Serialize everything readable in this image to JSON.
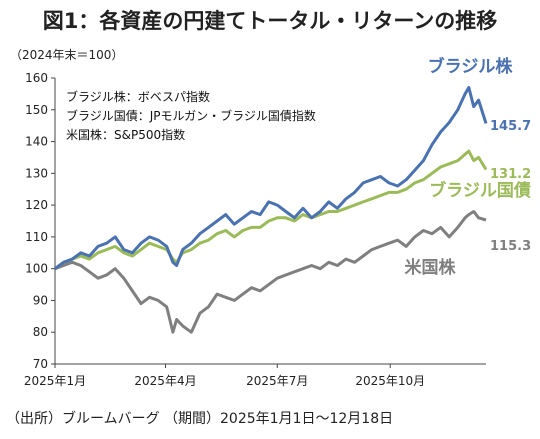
{
  "title": "図1：各資産の円建てトータル・リターンの推移",
  "unit_label": "（2024年末＝100）",
  "source": "（出所）ブルームバーグ （期間）2025年1月1日～12月18日",
  "notes": [
    "ブラジル株：ボベスパ指数",
    "ブラジル国債：JPモルガン・ブラジル国債指数",
    "米国株：S&P500指数"
  ],
  "chart_data": {
    "type": "line",
    "title": "図1：各資産の円建てトータル・リターンの推移",
    "ylabel": "（2024年末＝100）",
    "xlabel": "",
    "ylim": [
      70,
      160
    ],
    "yticks": [
      70,
      80,
      90,
      100,
      110,
      120,
      130,
      140,
      150,
      160
    ],
    "xlim": [
      "2025-01-01",
      "2025-12-18"
    ],
    "xticks": [
      {
        "date": "2025-01-01",
        "label": "2025年1月"
      },
      {
        "date": "2025-04-01",
        "label": "2025年4月"
      },
      {
        "date": "2025-07-01",
        "label": "2025年7月"
      },
      {
        "date": "2025-10-01",
        "label": "2025年10月"
      }
    ],
    "grid": false,
    "series": [
      {
        "name": "ブラジル株",
        "color": "#4a72b0",
        "end_label": "145.7",
        "points": [
          [
            "2025-01-01",
            100
          ],
          [
            "2025-01-08",
            102
          ],
          [
            "2025-01-15",
            103
          ],
          [
            "2025-01-22",
            105
          ],
          [
            "2025-01-29",
            104
          ],
          [
            "2025-02-05",
            107
          ],
          [
            "2025-02-12",
            108
          ],
          [
            "2025-02-19",
            110
          ],
          [
            "2025-02-26",
            106
          ],
          [
            "2025-03-05",
            105
          ],
          [
            "2025-03-12",
            108
          ],
          [
            "2025-03-19",
            110
          ],
          [
            "2025-03-26",
            109
          ],
          [
            "2025-04-02",
            107
          ],
          [
            "2025-04-07",
            102
          ],
          [
            "2025-04-10",
            101
          ],
          [
            "2025-04-15",
            106
          ],
          [
            "2025-04-22",
            108
          ],
          [
            "2025-04-29",
            111
          ],
          [
            "2025-05-06",
            113
          ],
          [
            "2025-05-13",
            115
          ],
          [
            "2025-05-20",
            117
          ],
          [
            "2025-05-27",
            114
          ],
          [
            "2025-06-03",
            116
          ],
          [
            "2025-06-10",
            118
          ],
          [
            "2025-06-17",
            117
          ],
          [
            "2025-06-24",
            121
          ],
          [
            "2025-07-01",
            120
          ],
          [
            "2025-07-08",
            118
          ],
          [
            "2025-07-15",
            116
          ],
          [
            "2025-07-22",
            119
          ],
          [
            "2025-07-29",
            116
          ],
          [
            "2025-08-05",
            118
          ],
          [
            "2025-08-12",
            121
          ],
          [
            "2025-08-19",
            119
          ],
          [
            "2025-08-26",
            122
          ],
          [
            "2025-09-02",
            124
          ],
          [
            "2025-09-09",
            127
          ],
          [
            "2025-09-16",
            128
          ],
          [
            "2025-09-23",
            129
          ],
          [
            "2025-09-30",
            127
          ],
          [
            "2025-10-07",
            126
          ],
          [
            "2025-10-14",
            128
          ],
          [
            "2025-10-21",
            131
          ],
          [
            "2025-10-28",
            134
          ],
          [
            "2025-11-04",
            139
          ],
          [
            "2025-11-11",
            143
          ],
          [
            "2025-11-18",
            146
          ],
          [
            "2025-11-25",
            150
          ],
          [
            "2025-12-01",
            155
          ],
          [
            "2025-12-04",
            157
          ],
          [
            "2025-12-08",
            151
          ],
          [
            "2025-12-12",
            153
          ],
          [
            "2025-12-18",
            145.7
          ]
        ]
      },
      {
        "name": "ブラジル国債",
        "color": "#9bbb59",
        "end_label": "131.2",
        "points": [
          [
            "2025-01-01",
            100
          ],
          [
            "2025-01-08",
            102
          ],
          [
            "2025-01-15",
            103
          ],
          [
            "2025-01-22",
            104
          ],
          [
            "2025-01-29",
            103
          ],
          [
            "2025-02-05",
            105
          ],
          [
            "2025-02-12",
            106
          ],
          [
            "2025-02-19",
            107
          ],
          [
            "2025-02-26",
            105
          ],
          [
            "2025-03-05",
            104
          ],
          [
            "2025-03-12",
            106
          ],
          [
            "2025-03-19",
            108
          ],
          [
            "2025-03-26",
            107
          ],
          [
            "2025-04-02",
            106
          ],
          [
            "2025-04-07",
            103
          ],
          [
            "2025-04-10",
            102
          ],
          [
            "2025-04-15",
            105
          ],
          [
            "2025-04-22",
            106
          ],
          [
            "2025-04-29",
            108
          ],
          [
            "2025-05-06",
            109
          ],
          [
            "2025-05-13",
            111
          ],
          [
            "2025-05-20",
            112
          ],
          [
            "2025-05-27",
            110
          ],
          [
            "2025-06-03",
            112
          ],
          [
            "2025-06-10",
            113
          ],
          [
            "2025-06-17",
            113
          ],
          [
            "2025-06-24",
            115
          ],
          [
            "2025-07-01",
            116
          ],
          [
            "2025-07-08",
            116
          ],
          [
            "2025-07-15",
            115
          ],
          [
            "2025-07-22",
            117
          ],
          [
            "2025-07-29",
            116
          ],
          [
            "2025-08-05",
            117
          ],
          [
            "2025-08-12",
            118
          ],
          [
            "2025-08-19",
            118
          ],
          [
            "2025-08-26",
            119
          ],
          [
            "2025-09-02",
            120
          ],
          [
            "2025-09-09",
            121
          ],
          [
            "2025-09-16",
            122
          ],
          [
            "2025-09-23",
            123
          ],
          [
            "2025-09-30",
            124
          ],
          [
            "2025-10-07",
            124
          ],
          [
            "2025-10-14",
            125
          ],
          [
            "2025-10-21",
            127
          ],
          [
            "2025-10-28",
            128
          ],
          [
            "2025-11-04",
            130
          ],
          [
            "2025-11-11",
            132
          ],
          [
            "2025-11-18",
            133
          ],
          [
            "2025-11-25",
            134
          ],
          [
            "2025-12-01",
            136
          ],
          [
            "2025-12-04",
            137
          ],
          [
            "2025-12-08",
            134
          ],
          [
            "2025-12-12",
            135
          ],
          [
            "2025-12-18",
            131.2
          ]
        ]
      },
      {
        "name": "米国株",
        "color": "#7f7f7f",
        "end_label": "115.3",
        "points": [
          [
            "2025-01-01",
            100
          ],
          [
            "2025-01-08",
            101
          ],
          [
            "2025-01-15",
            102
          ],
          [
            "2025-01-22",
            101
          ],
          [
            "2025-01-29",
            99
          ],
          [
            "2025-02-05",
            97
          ],
          [
            "2025-02-12",
            98
          ],
          [
            "2025-02-19",
            100
          ],
          [
            "2025-02-26",
            97
          ],
          [
            "2025-03-05",
            93
          ],
          [
            "2025-03-12",
            89
          ],
          [
            "2025-03-19",
            91
          ],
          [
            "2025-03-26",
            90
          ],
          [
            "2025-04-02",
            88
          ],
          [
            "2025-04-07",
            80
          ],
          [
            "2025-04-10",
            84
          ],
          [
            "2025-04-15",
            82
          ],
          [
            "2025-04-22",
            80
          ],
          [
            "2025-04-29",
            86
          ],
          [
            "2025-05-06",
            88
          ],
          [
            "2025-05-13",
            92
          ],
          [
            "2025-05-20",
            91
          ],
          [
            "2025-05-27",
            90
          ],
          [
            "2025-06-03",
            92
          ],
          [
            "2025-06-10",
            94
          ],
          [
            "2025-06-17",
            93
          ],
          [
            "2025-06-24",
            95
          ],
          [
            "2025-07-01",
            97
          ],
          [
            "2025-07-08",
            98
          ],
          [
            "2025-07-15",
            99
          ],
          [
            "2025-07-22",
            100
          ],
          [
            "2025-07-29",
            101
          ],
          [
            "2025-08-05",
            100
          ],
          [
            "2025-08-12",
            102
          ],
          [
            "2025-08-19",
            101
          ],
          [
            "2025-08-26",
            103
          ],
          [
            "2025-09-02",
            102
          ],
          [
            "2025-09-09",
            104
          ],
          [
            "2025-09-16",
            106
          ],
          [
            "2025-09-23",
            107
          ],
          [
            "2025-09-30",
            108
          ],
          [
            "2025-10-07",
            109
          ],
          [
            "2025-10-14",
            107
          ],
          [
            "2025-10-21",
            110
          ],
          [
            "2025-10-28",
            112
          ],
          [
            "2025-11-04",
            111
          ],
          [
            "2025-11-11",
            113
          ],
          [
            "2025-11-18",
            110
          ],
          [
            "2025-11-25",
            113
          ],
          [
            "2025-12-01",
            116
          ],
          [
            "2025-12-04",
            117
          ],
          [
            "2025-12-08",
            118
          ],
          [
            "2025-12-12",
            116
          ],
          [
            "2025-12-18",
            115.3
          ]
        ]
      }
    ]
  }
}
